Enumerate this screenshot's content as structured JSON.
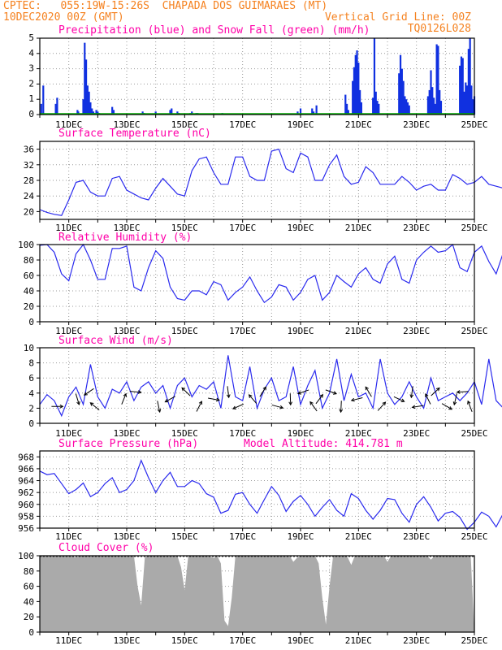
{
  "header": {
    "line1_left": "CPTEC:   055:19W-15:26S  CHAPADA DOS GUIMARAES (MT)",
    "line2_left": "10DEC2020 00Z (GMT)",
    "line2_right": "Vertical Grid Line: 00Z",
    "line3_right": "TQ0126L028"
  },
  "colors": {
    "header": "#f58220",
    "title": "#ff00a8",
    "line": "#2a2aee",
    "precip": "#1030e0",
    "snow": "#00b000",
    "cloud": "#aaaaaa",
    "grid": "#999999"
  },
  "x_axis": {
    "tick_labels": [
      "11DEC",
      "13DEC",
      "15DEC",
      "17DEC",
      "19DEC",
      "21DEC",
      "23DEC",
      "25DEC"
    ],
    "tick_days": [
      11,
      13,
      15,
      17,
      19,
      21,
      23,
      25
    ],
    "day_range": [
      10,
      25
    ]
  },
  "chart_data": [
    {
      "id": "precip",
      "type": "bar",
      "title": "Precipitation (blue) and Snow Fall (green) (mm/h)",
      "ylim": [
        0,
        5
      ],
      "yticks": [
        "0",
        "1",
        "2",
        "3",
        "4",
        "5"
      ],
      "series": [
        {
          "name": "Precipitation",
          "x": [
            10.05,
            10.12,
            10.55,
            10.6,
            11.3,
            11.33,
            11.5,
            11.55,
            11.6,
            11.65,
            11.7,
            11.75,
            11.8,
            11.85,
            11.9,
            11.95,
            12.0,
            12.05,
            12.5,
            12.55,
            13.55,
            13.6,
            14.0,
            14.5,
            14.55,
            14.75,
            14.8,
            15.2,
            15.25,
            15.4,
            15.45,
            16.3,
            18.9,
            19.0,
            19.4,
            19.45,
            19.55,
            20.55,
            20.6,
            20.65,
            20.8,
            20.85,
            20.9,
            20.95,
            21.0,
            21.05,
            21.1,
            21.5,
            21.55,
            21.6,
            21.65,
            21.7,
            22.4,
            22.45,
            22.5,
            22.55,
            22.6,
            22.65,
            22.7,
            22.75,
            23.4,
            23.45,
            23.5,
            23.55,
            23.6,
            23.65,
            23.7,
            23.75,
            23.8,
            23.85,
            24.5,
            24.55,
            24.6,
            24.65,
            24.7,
            24.75,
            24.8,
            24.85,
            24.9,
            24.95,
            25.0
          ],
          "values": [
            0.7,
            1.9,
            0.7,
            1.1,
            0.3,
            0.2,
            1.0,
            4.7,
            3.6,
            1.9,
            1.5,
            0.8,
            0.4,
            0.2,
            0.1,
            0.3,
            0.2,
            0.1,
            0.5,
            0.3,
            0.2,
            0.1,
            0.2,
            0.3,
            0.4,
            0.2,
            0.1,
            0.1,
            0.2,
            0.1,
            0.1,
            0.1,
            0.2,
            0.4,
            0.4,
            0.2,
            0.6,
            1.3,
            0.7,
            0.3,
            2.2,
            3.1,
            3.9,
            4.2,
            3.4,
            1.6,
            0.8,
            1.1,
            5.0,
            1.5,
            0.9,
            0.7,
            2.7,
            3.9,
            3.0,
            2.2,
            1.2,
            1.0,
            0.8,
            0.6,
            1.2,
            1.6,
            2.9,
            1.8,
            1.1,
            0.7,
            4.6,
            4.5,
            1.6,
            0.9,
            3.2,
            3.8,
            3.7,
            1.5,
            2.1,
            1.9,
            4.3,
            5.0,
            1.9,
            1.0,
            1.2
          ]
        },
        {
          "name": "Snow Fall",
          "values": [
            0
          ]
        }
      ]
    },
    {
      "id": "temperature",
      "type": "line",
      "title": "Surface Temperature (nC)",
      "ylim": [
        18,
        38
      ],
      "yticks": [
        "20",
        "24",
        "28",
        "32",
        "36"
      ],
      "x_start_day": 10,
      "x_step_days": 0.25,
      "series": [
        {
          "values": [
            20.5,
            19.8,
            19.3,
            19.0,
            23.0,
            27.5,
            28.0,
            25.0,
            24.0,
            24.0,
            28.5,
            29.0,
            25.5,
            24.5,
            23.5,
            23.0,
            26.0,
            28.5,
            26.5,
            24.5,
            24.0,
            30.5,
            33.5,
            34.0,
            30.0,
            27.0,
            27.0,
            34.0,
            34.0,
            29.0,
            28.0,
            28.0,
            35.5,
            36.0,
            31.0,
            30.0,
            35.0,
            34.0,
            28.0,
            28.0,
            32.0,
            34.5,
            29.0,
            27.0,
            27.5,
            31.5,
            30.0,
            27.0,
            27.0,
            27.0,
            29.0,
            27.5,
            25.5,
            26.5,
            27.0,
            25.5,
            25.5,
            29.5,
            28.5,
            27.0,
            27.5,
            29.0,
            27.0,
            26.5,
            26.0,
            25.5,
            25.5,
            25.5,
            24.5,
            23.5,
            28.5,
            28.0,
            27.0
          ]
        }
      ]
    },
    {
      "id": "humidity",
      "type": "line",
      "title": "Relative Humidity (%)",
      "ylim": [
        0,
        100
      ],
      "yticks": [
        "0",
        "20",
        "40",
        "60",
        "80",
        "100"
      ],
      "x_start_day": 10,
      "x_step_days": 0.25,
      "series": [
        {
          "values": [
            99,
            100,
            90,
            62,
            53,
            88,
            100,
            80,
            55,
            55,
            95,
            95,
            98,
            45,
            40,
            70,
            92,
            82,
            45,
            30,
            28,
            40,
            40,
            35,
            52,
            48,
            28,
            38,
            45,
            58,
            40,
            25,
            32,
            48,
            45,
            28,
            38,
            55,
            60,
            28,
            38,
            60,
            52,
            45,
            62,
            70,
            55,
            50,
            75,
            85,
            55,
            50,
            80,
            90,
            98,
            90,
            92,
            100,
            70,
            65,
            90,
            98,
            78,
            62,
            90,
            100,
            100,
            80,
            62,
            100,
            98,
            58,
            88,
            92
          ]
        }
      ]
    },
    {
      "id": "wind",
      "type": "line",
      "title": "Surface Wind (m/s)",
      "ylim": [
        0,
        10
      ],
      "yticks": [
        "0",
        "2",
        "4",
        "6",
        "8",
        "10"
      ],
      "x_start_day": 10,
      "x_step_days": 0.25,
      "series": [
        {
          "values": [
            2.5,
            3.8,
            3.0,
            1.0,
            3.5,
            4.8,
            2.5,
            7.8,
            3.5,
            2.0,
            4.5,
            4.0,
            5.5,
            3.0,
            4.8,
            5.5,
            4.0,
            5.0,
            2.0,
            5.0,
            6.0,
            3.5,
            5.0,
            4.5,
            5.5,
            2.0,
            9.0,
            3.5,
            3.0,
            7.5,
            2.0,
            4.5,
            6.0,
            3.0,
            3.5,
            7.5,
            2.5,
            5.0,
            7.0,
            2.0,
            4.0,
            8.5,
            3.0,
            6.5,
            3.5,
            4.0,
            2.0,
            8.5,
            4.0,
            2.5,
            3.5,
            5.5,
            3.5,
            2.0,
            6.0,
            3.0,
            3.5,
            4.0,
            3.0,
            4.0,
            5.5,
            2.5,
            8.5,
            3.0,
            2.0,
            4.5,
            5.0,
            2.0,
            5.0,
            2.0,
            0.5,
            3.0
          ]
        }
      ],
      "arrow_days": [
        10.6,
        11.3,
        11.7,
        11.9,
        12.9,
        13.3,
        14.1,
        14.5,
        15.05,
        15.5,
        16.0,
        16.5,
        16.85,
        17.35,
        17.7,
        18.2,
        18.65,
        19.1,
        19.45,
        19.65,
        20.05,
        20.4,
        20.95,
        21.35,
        21.8,
        22.4,
        22.85,
        23.05,
        23.4,
        23.65,
        24.05,
        24.35,
        24.6,
        24.85
      ]
    },
    {
      "id": "pressure",
      "type": "line",
      "title": "Surface Pressure (hPa)",
      "annotation": "Model Altitude: 414.781 m",
      "ylim": [
        956,
        969
      ],
      "yticks": [
        "956",
        "958",
        "960",
        "962",
        "964",
        "966",
        "968"
      ],
      "x_start_day": 10,
      "x_step_days": 0.25,
      "series": [
        {
          "values": [
            965.6,
            965.0,
            965.2,
            963.5,
            961.8,
            962.5,
            963.6,
            961.3,
            962.0,
            963.5,
            964.5,
            962.0,
            962.5,
            964.0,
            967.4,
            964.5,
            962.0,
            964.0,
            965.4,
            963.0,
            963.0,
            964.0,
            963.5,
            961.8,
            961.2,
            958.5,
            959.0,
            961.7,
            962.0,
            960.0,
            958.5,
            960.8,
            963.0,
            961.5,
            958.8,
            960.5,
            961.5,
            960.0,
            958.0,
            959.5,
            960.8,
            959.0,
            958.0,
            961.8,
            961.0,
            959.0,
            957.5,
            959.0,
            961.0,
            960.8,
            958.5,
            957.0,
            960.0,
            961.3,
            959.5,
            957.2,
            958.5,
            958.8,
            957.8,
            955.8,
            957.0,
            958.7,
            958.0,
            956.2,
            958.5,
            959.3,
            957.5,
            956.0,
            956.5,
            956.0,
            957.0,
            957.5,
            959.5
          ]
        }
      ]
    },
    {
      "id": "cloud",
      "type": "area",
      "title": "Cloud Cover (%)",
      "ylim": [
        0,
        100
      ],
      "yticks": [
        "0",
        "20",
        "40",
        "60",
        "80",
        "100"
      ],
      "x_start_day": 10,
      "x_step_days": 0.125,
      "series": [
        {
          "values": [
            100,
            100,
            100,
            100,
            100,
            100,
            100,
            100,
            100,
            99,
            98,
            100,
            100,
            100,
            100,
            100,
            100,
            100,
            100,
            100,
            100,
            100,
            100,
            100,
            100,
            100,
            100,
            60,
            35,
            98,
            100,
            100,
            100,
            100,
            100,
            100,
            100,
            100,
            100,
            85,
            55,
            100,
            100,
            100,
            100,
            100,
            100,
            99,
            97,
            100,
            90,
            15,
            8,
            45,
            100,
            100,
            100,
            100,
            100,
            100,
            100,
            100,
            100,
            100,
            100,
            100,
            100,
            100,
            100,
            100,
            92,
            97,
            100,
            100,
            100,
            100,
            100,
            90,
            45,
            10,
            60,
            100,
            100,
            100,
            100,
            98,
            88,
            100,
            100,
            100,
            100,
            100,
            98,
            100,
            100,
            100,
            92,
            100,
            100,
            100,
            100,
            100,
            100,
            100,
            100,
            100,
            100,
            100,
            95,
            100,
            100,
            100,
            100,
            100,
            100,
            100,
            100,
            100,
            100,
            100
          ]
        }
      ]
    }
  ]
}
